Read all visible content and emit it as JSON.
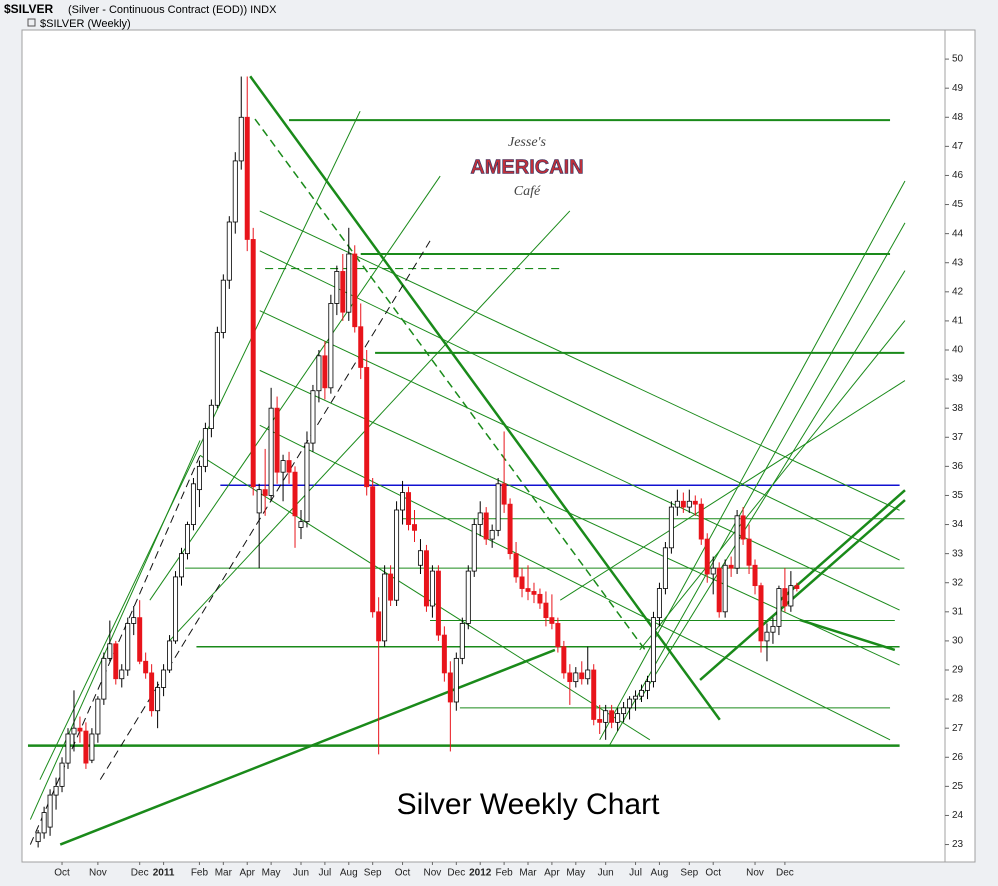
{
  "chart_data": {
    "type": "candlestick",
    "title": "$SILVER",
    "subtitle": "(Silver - Continuous Contract (EOD)) INDX",
    "series_label": "$SILVER (Weekly)",
    "annotation": "Silver Weekly Chart",
    "logo": [
      "Jesse's",
      "AMERICAIN",
      "Café"
    ],
    "up_color": "#ffffff",
    "down_color": "#e8141b",
    "line_color": "#1a8a1a",
    "grid": false,
    "ylim": [
      22.4,
      51
    ],
    "yticks": [
      23,
      24,
      25,
      26,
      27,
      28,
      29,
      30,
      31,
      32,
      33,
      34,
      35,
      36,
      37,
      38,
      39,
      40,
      41,
      42,
      43,
      44,
      45,
      46,
      47,
      48,
      49,
      50
    ],
    "xlim": [
      -2.7,
      151.8
    ],
    "xticks": [
      {
        "value": 4,
        "label": "Oct"
      },
      {
        "value": 10,
        "label": "Nov"
      },
      {
        "value": 17,
        "label": "Dec"
      },
      {
        "value": 21,
        "label": "2011"
      },
      {
        "value": 27,
        "label": "Feb"
      },
      {
        "value": 31,
        "label": "Mar"
      },
      {
        "value": 35,
        "label": "Apr"
      },
      {
        "value": 39,
        "label": "May"
      },
      {
        "value": 44,
        "label": "Jun"
      },
      {
        "value": 48,
        "label": "Jul"
      },
      {
        "value": 52,
        "label": "Aug"
      },
      {
        "value": 56,
        "label": "Sep"
      },
      {
        "value": 61,
        "label": "Oct"
      },
      {
        "value": 66,
        "label": "Nov"
      },
      {
        "value": 70,
        "label": "Dec"
      },
      {
        "value": 74,
        "label": "2012"
      },
      {
        "value": 78,
        "label": "Feb"
      },
      {
        "value": 82,
        "label": "Mar"
      },
      {
        "value": 86,
        "label": "Apr"
      },
      {
        "value": 90,
        "label": "May"
      },
      {
        "value": 95,
        "label": "Jun"
      },
      {
        "value": 100,
        "label": "Jul"
      },
      {
        "value": 104,
        "label": "Aug"
      },
      {
        "value": 109,
        "label": "Sep"
      },
      {
        "value": 113,
        "label": "Oct"
      },
      {
        "value": 120,
        "label": "Nov"
      },
      {
        "value": 125,
        "label": "Dec"
      }
    ],
    "ohlc": [
      [
        23.1,
        23.5,
        22.9,
        23.4
      ],
      [
        23.4,
        24.3,
        23.2,
        24.1
      ],
      [
        23.6,
        24.9,
        23.3,
        24.7
      ],
      [
        24.7,
        25.3,
        24.2,
        25.0
      ],
      [
        25.0,
        26.0,
        24.8,
        25.8
      ],
      [
        25.8,
        27.0,
        25.6,
        26.8
      ],
      [
        26.8,
        28.3,
        26.2,
        27.0
      ],
      [
        27.0,
        27.4,
        26.5,
        26.9
      ],
      [
        26.9,
        27.2,
        25.6,
        25.8
      ],
      [
        25.9,
        27.0,
        25.8,
        26.8
      ],
      [
        26.8,
        28.1,
        26.5,
        28.0
      ],
      [
        28.0,
        29.6,
        27.8,
        29.4
      ],
      [
        29.4,
        30.7,
        29.3,
        29.9
      ],
      [
        29.9,
        30.0,
        28.5,
        28.7
      ],
      [
        28.7,
        29.2,
        28.4,
        29.0
      ],
      [
        29.0,
        30.8,
        28.8,
        30.6
      ],
      [
        30.6,
        31.2,
        30.2,
        30.8
      ],
      [
        30.8,
        31.4,
        29.2,
        29.3
      ],
      [
        29.3,
        29.6,
        28.7,
        28.9
      ],
      [
        28.9,
        29.2,
        27.4,
        27.6
      ],
      [
        27.6,
        28.6,
        27.0,
        28.4
      ],
      [
        28.4,
        29.2,
        28.1,
        29.0
      ],
      [
        29.0,
        30.2,
        28.9,
        30.0
      ],
      [
        30.0,
        32.4,
        29.9,
        32.2
      ],
      [
        32.2,
        33.2,
        31.9,
        33.0
      ],
      [
        33.0,
        34.1,
        32.8,
        34.0
      ],
      [
        34.0,
        35.6,
        33.8,
        35.4
      ],
      [
        35.2,
        36.2,
        34.6,
        36.0
      ],
      [
        36.0,
        37.5,
        35.8,
        37.3
      ],
      [
        37.3,
        38.3,
        37.0,
        38.1
      ],
      [
        38.1,
        40.8,
        38.0,
        40.6
      ],
      [
        40.6,
        42.6,
        40.4,
        42.4
      ],
      [
        42.4,
        44.6,
        42.1,
        44.4
      ],
      [
        44.4,
        46.8,
        44.0,
        46.5
      ],
      [
        46.5,
        49.4,
        46.2,
        48.0
      ],
      [
        48.0,
        49.4,
        43.4,
        43.8
      ],
      [
        43.8,
        44.2,
        35.0,
        35.3
      ],
      [
        34.4,
        35.4,
        32.5,
        35.2
      ],
      [
        35.2,
        36.6,
        34.3,
        35.0
      ],
      [
        35.0,
        38.7,
        34.8,
        38.0
      ],
      [
        38.0,
        38.4,
        35.4,
        35.8
      ],
      [
        35.8,
        36.4,
        34.8,
        36.2
      ],
      [
        36.2,
        36.5,
        35.4,
        35.8
      ],
      [
        35.8,
        36.0,
        33.2,
        34.3
      ],
      [
        33.9,
        34.5,
        33.5,
        34.1
      ],
      [
        34.1,
        37.2,
        33.9,
        36.8
      ],
      [
        36.8,
        38.8,
        36.5,
        38.6
      ],
      [
        38.6,
        40.0,
        38.2,
        39.8
      ],
      [
        39.8,
        40.3,
        38.3,
        38.7
      ],
      [
        38.7,
        41.9,
        38.5,
        41.6
      ],
      [
        41.6,
        42.9,
        41.2,
        42.7
      ],
      [
        42.7,
        43.3,
        41.0,
        41.3
      ],
      [
        41.3,
        44.2,
        41.0,
        43.3
      ],
      [
        43.3,
        43.6,
        40.6,
        40.8
      ],
      [
        40.8,
        41.6,
        39.0,
        39.4
      ],
      [
        39.4,
        40.0,
        35.0,
        35.3
      ],
      [
        35.3,
        35.6,
        30.8,
        31.0
      ],
      [
        31.0,
        31.5,
        26.1,
        30.0
      ],
      [
        30.0,
        32.6,
        29.8,
        32.3
      ],
      [
        32.3,
        32.6,
        31.2,
        31.4
      ],
      [
        31.4,
        34.8,
        31.2,
        34.5
      ],
      [
        34.5,
        35.5,
        34.0,
        35.1
      ],
      [
        35.1,
        35.3,
        33.8,
        34.0
      ],
      [
        34.0,
        34.5,
        33.4,
        33.8
      ],
      [
        32.6,
        33.5,
        32.3,
        33.1
      ],
      [
        33.1,
        33.3,
        31.0,
        31.2
      ],
      [
        31.2,
        32.6,
        30.8,
        32.4
      ],
      [
        32.4,
        32.6,
        30.0,
        30.2
      ],
      [
        30.2,
        30.5,
        28.6,
        28.9
      ],
      [
        28.9,
        29.3,
        26.2,
        27.9
      ],
      [
        27.9,
        29.6,
        27.6,
        29.4
      ],
      [
        29.4,
        30.8,
        29.2,
        30.6
      ],
      [
        30.6,
        32.6,
        30.4,
        32.4
      ],
      [
        32.4,
        34.2,
        32.2,
        34.0
      ],
      [
        34.0,
        34.8,
        33.6,
        34.4
      ],
      [
        34.4,
        34.6,
        33.3,
        33.5
      ],
      [
        33.5,
        34.0,
        33.2,
        33.8
      ],
      [
        33.8,
        35.6,
        33.6,
        35.4
      ],
      [
        35.4,
        37.2,
        34.4,
        34.7
      ],
      [
        34.7,
        34.9,
        32.8,
        33.0
      ],
      [
        33.0,
        33.4,
        32.0,
        32.2
      ],
      [
        32.2,
        32.5,
        31.5,
        31.8
      ],
      [
        31.8,
        32.6,
        31.4,
        31.7
      ],
      [
        31.7,
        32.0,
        31.3,
        31.6
      ],
      [
        31.6,
        31.8,
        31.1,
        31.3
      ],
      [
        31.3,
        31.7,
        30.5,
        30.8
      ],
      [
        30.8,
        31.6,
        30.4,
        30.6
      ],
      [
        30.6,
        30.8,
        29.6,
        29.8
      ],
      [
        29.8,
        30.0,
        28.7,
        28.9
      ],
      [
        28.9,
        29.2,
        27.8,
        28.6
      ],
      [
        28.6,
        29.1,
        28.4,
        28.9
      ],
      [
        28.9,
        29.3,
        28.5,
        28.7
      ],
      [
        28.7,
        29.8,
        28.5,
        29.0
      ],
      [
        29.0,
        29.2,
        27.1,
        27.3
      ],
      [
        27.3,
        27.8,
        26.8,
        27.2
      ],
      [
        27.2,
        27.8,
        26.6,
        27.6
      ],
      [
        27.6,
        27.8,
        27.0,
        27.2
      ],
      [
        27.2,
        27.7,
        26.9,
        27.5
      ],
      [
        27.5,
        27.9,
        27.2,
        27.7
      ],
      [
        27.7,
        28.1,
        27.3,
        28.0
      ],
      [
        28.0,
        28.3,
        27.6,
        28.1
      ],
      [
        28.1,
        28.5,
        27.9,
        28.3
      ],
      [
        28.3,
        28.8,
        28.0,
        28.6
      ],
      [
        28.6,
        31.0,
        28.4,
        30.8
      ],
      [
        30.8,
        32.0,
        30.5,
        31.8
      ],
      [
        31.8,
        33.4,
        31.6,
        33.2
      ],
      [
        33.2,
        34.8,
        33.0,
        34.6
      ],
      [
        34.6,
        35.2,
        34.3,
        34.8
      ],
      [
        34.8,
        35.1,
        34.4,
        34.6
      ],
      [
        34.6,
        35.2,
        34.4,
        34.8
      ],
      [
        34.8,
        35.0,
        34.3,
        34.7
      ],
      [
        34.7,
        34.9,
        33.3,
        33.5
      ],
      [
        33.5,
        33.7,
        32.0,
        32.3
      ],
      [
        32.3,
        32.9,
        31.6,
        32.5
      ],
      [
        32.5,
        32.7,
        30.8,
        31.0
      ],
      [
        31.0,
        32.8,
        30.8,
        32.6
      ],
      [
        32.6,
        32.9,
        32.2,
        32.5
      ],
      [
        32.5,
        34.5,
        32.3,
        34.3
      ],
      [
        34.3,
        34.6,
        33.3,
        33.5
      ],
      [
        33.5,
        34.0,
        32.3,
        32.6
      ],
      [
        32.6,
        32.8,
        31.6,
        31.9
      ],
      [
        31.9,
        32.0,
        29.6,
        30.0
      ],
      [
        30.0,
        30.6,
        29.3,
        30.3
      ],
      [
        30.3,
        30.8,
        29.9,
        30.5
      ],
      [
        30.5,
        31.9,
        30.2,
        31.8
      ],
      [
        31.8,
        32.5,
        31.0,
        31.2
      ],
      [
        31.2,
        32.4,
        31.0,
        31.9
      ],
      [
        31.9,
        32.0,
        31.7,
        31.8
      ]
    ],
    "trendlines": [
      {
        "from": [
          42,
          47.9
        ],
        "to": [
          142.6,
          47.9
        ],
        "width": 2
      },
      {
        "from": [
          54,
          43.3
        ],
        "to": [
          142.6,
          43.3
        ],
        "width": 2
      },
      {
        "from": [
          38,
          42.8
        ],
        "to": [
          88,
          42.8
        ],
        "width": 1.2,
        "dash": true
      },
      {
        "from": [
          56.4,
          39.9
        ],
        "to": [
          145,
          39.9
        ],
        "width": 2
      },
      {
        "from": [
          30.5,
          35.35
        ],
        "to": [
          144.2,
          35.35
        ],
        "width": 1.5,
        "color": "#1010d0"
      },
      {
        "from": [
          -1.7,
          26.4
        ],
        "to": [
          144.2,
          26.4
        ],
        "width": 2.5
      },
      {
        "from": [
          26.5,
          29.8
        ],
        "to": [
          144.2,
          29.8
        ],
        "width": 1.5
      },
      {
        "from": [
          70.6,
          27.7
        ],
        "to": [
          142.6,
          27.7
        ],
        "width": 1
      },
      {
        "from": [
          61,
          34.2
        ],
        "to": [
          145,
          34.2
        ],
        "width": 1
      },
      {
        "from": [
          24.6,
          32.5
        ],
        "to": [
          145,
          32.5
        ],
        "width": 1
      },
      {
        "from": [
          65.6,
          30.7
        ],
        "to": [
          143.4,
          30.7
        ],
        "width": 1
      },
      {
        "from": [
          35.5,
          49.41
        ],
        "to": [
          114.1,
          27.29
        ],
        "width": 2.5
      },
      {
        "from": [
          36.3,
          47.94
        ],
        "to": [
          101.6,
          29.69
        ],
        "width": 1.5,
        "dash": true
      },
      {
        "from": [
          3.7,
          23
        ],
        "to": [
          86.5,
          29.69
        ],
        "width": 2.5
      },
      {
        "from": [
          94,
          26.6
        ],
        "to": [
          145.1,
          45.81
        ],
        "width": 1
      },
      {
        "from": [
          95.7,
          26.43
        ],
        "to": [
          145.1,
          44.37
        ],
        "width": 1
      },
      {
        "from": [
          100.7,
          27.97
        ],
        "to": [
          145.1,
          42.73
        ],
        "width": 1
      },
      {
        "from": [
          100.7,
          29.69
        ],
        "to": [
          145.1,
          41.01
        ],
        "width": 1
      },
      {
        "from": [
          87.4,
          31.4
        ],
        "to": [
          145.1,
          38.95
        ],
        "width": 1
      },
      {
        "from": [
          110.8,
          28.66
        ],
        "to": [
          145.1,
          34.84
        ],
        "width": 2.5
      },
      {
        "from": [
          124.2,
          31.4
        ],
        "to": [
          145.1,
          35.18
        ],
        "width": 2.5
      },
      {
        "from": [
          127.5,
          30.72
        ],
        "to": [
          143.4,
          29.69
        ],
        "width": 2.5
      },
      {
        "from": [
          37.1,
          44.78
        ],
        "to": [
          144.2,
          34.49
        ],
        "width": 1
      },
      {
        "from": [
          37.1,
          43.41
        ],
        "to": [
          144.2,
          32.78
        ],
        "width": 1
      },
      {
        "from": [
          37.1,
          41.35
        ],
        "to": [
          144.2,
          31.06
        ],
        "width": 1
      },
      {
        "from": [
          37.1,
          39.3
        ],
        "to": [
          144.2,
          29.17
        ],
        "width": 1
      },
      {
        "from": [
          37.1,
          37.41
        ],
        "to": [
          142.6,
          26.6
        ],
        "width": 1
      },
      {
        "from": [
          -1.3,
          23
        ],
        "to": [
          27.1,
          36.38
        ],
        "width": 1,
        "dash": true,
        "color": "#111111"
      },
      {
        "from": [
          -1.3,
          23.86
        ],
        "to": [
          27.1,
          36.89
        ],
        "width": 1
      },
      {
        "from": [
          18.7,
          31.4
        ],
        "to": [
          67.3,
          45.98
        ],
        "width": 1
      },
      {
        "from": [
          22.1,
          30.03
        ],
        "to": [
          89,
          44.78
        ],
        "width": 1
      },
      {
        "from": [
          0.3,
          25.23
        ],
        "to": [
          53.9,
          48.21
        ],
        "width": 1
      },
      {
        "from": [
          10.4,
          25.23
        ],
        "to": [
          65.6,
          43.75
        ],
        "width": 1,
        "dash": true,
        "color": "#111111"
      },
      {
        "from": [
          27.1,
          36.38
        ],
        "to": [
          102.4,
          26.6
        ],
        "width": 1
      }
    ]
  }
}
